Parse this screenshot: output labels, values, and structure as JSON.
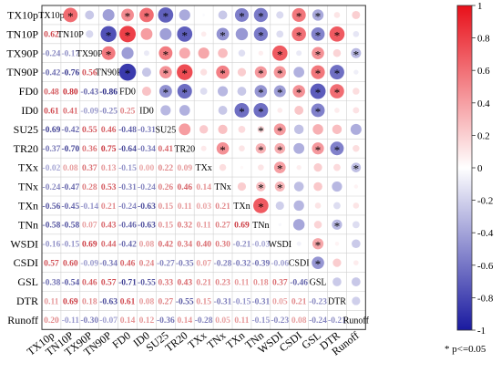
{
  "chart_data": {
    "type": "heatmap",
    "title": "",
    "variables": [
      "TX10p",
      "TN10P",
      "TX90P",
      "TN90P",
      "FD0",
      "ID0",
      "SU25",
      "TR20",
      "TXx",
      "TNx",
      "TXn",
      "TNn",
      "WSDI",
      "CSDI",
      "GSL",
      "DTR",
      "Runoff"
    ],
    "colorbar": {
      "min": -1,
      "max": 1,
      "ticks": [
        "1",
        "0.8",
        "0.6",
        "0.4",
        "0.2",
        "0",
        "-0.2",
        "-0.4",
        "-0.6",
        "-0.8",
        "-1"
      ],
      "high_color": "#e8101a",
      "mid_color": "#ffffff",
      "low_color": "#1a1aa0"
    },
    "significance_note": "* p<=0.05",
    "lower_triangle_values": [
      [],
      [
        0.62
      ],
      [
        -0.24,
        -0.17
      ],
      [
        -0.42,
        -0.76,
        0.56
      ],
      [
        0.48,
        0.8,
        -0.43,
        -0.86
      ],
      [
        0.61,
        0.41,
        -0.09,
        -0.25,
        0.25
      ],
      [
        -0.69,
        -0.42,
        0.55,
        0.46,
        -0.48,
        -0.31
      ],
      [
        -0.37,
        -0.7,
        0.36,
        0.75,
        -0.64,
        -0.34,
        0.41
      ],
      [
        -0.02,
        0.08,
        0.37,
        0.13,
        -0.15,
        -0.0,
        0.22,
        0.09
      ],
      [
        -0.24,
        -0.47,
        0.28,
        0.53,
        -0.31,
        -0.24,
        0.26,
        0.46,
        0.14
      ],
      [
        -0.56,
        -0.45,
        -0.14,
        0.21,
        -0.24,
        -0.63,
        0.15,
        0.11,
        0.03,
        0.21
      ],
      [
        -0.58,
        -0.58,
        0.07,
        0.43,
        -0.46,
        -0.63,
        0.15,
        0.32,
        0.11,
        0.27,
        0.69
      ],
      [
        -0.16,
        -0.15,
        0.69,
        0.44,
        -0.42,
        0.08,
        0.42,
        0.34,
        0.4,
        0.3,
        -0.21,
        -0.03
      ],
      [
        0.57,
        0.6,
        -0.09,
        -0.34,
        0.46,
        0.24,
        -0.27,
        -0.35,
        0.07,
        -0.28,
        -0.32,
        -0.39,
        -0.06
      ],
      [
        -0.38,
        -0.54,
        0.46,
        0.57,
        -0.71,
        -0.55,
        0.33,
        0.43,
        0.21,
        0.23,
        0.11,
        0.18,
        0.37,
        -0.46
      ],
      [
        0.11,
        0.69,
        0.18,
        -0.63,
        0.61,
        0.08,
        0.27,
        -0.55,
        0.15,
        -0.31,
        -0.15,
        -0.31,
        0.05,
        0.21,
        -0.23
      ],
      [
        0.2,
        -0.11,
        -0.3,
        -0.07,
        0.14,
        0.12,
        -0.36,
        0.14,
        -0.28,
        0.05,
        0.11,
        -0.15,
        -0.23,
        0.08,
        -0.24,
        -0.21
      ]
    ],
    "upper_triangle_values": [
      [
        0.62,
        -0.24,
        -0.42,
        0.48,
        0.61,
        -0.69,
        -0.37,
        -0.02,
        -0.24,
        -0.56,
        -0.58,
        -0.16,
        0.57,
        -0.38,
        0.11,
        0.2
      ],
      [
        -0.17,
        -0.76,
        0.8,
        0.41,
        -0.42,
        -0.7,
        0.08,
        -0.47,
        -0.45,
        -0.58,
        -0.15,
        0.6,
        -0.54,
        0.69,
        -0.11
      ],
      [
        0.56,
        -0.43,
        -0.09,
        0.55,
        0.36,
        0.37,
        0.28,
        -0.14,
        0.07,
        0.69,
        -0.09,
        0.46,
        0.18,
        -0.3
      ],
      [
        -0.86,
        -0.25,
        0.46,
        0.75,
        0.13,
        0.53,
        0.21,
        0.43,
        0.44,
        -0.34,
        0.57,
        -0.63,
        -0.07
      ],
      [
        0.25,
        -0.48,
        -0.64,
        -0.15,
        -0.31,
        -0.24,
        -0.46,
        -0.42,
        0.46,
        -0.71,
        0.61,
        0.14
      ],
      [
        -0.31,
        -0.34,
        -0.0,
        -0.24,
        -0.63,
        -0.63,
        0.08,
        0.24,
        -0.55,
        0.08,
        0.12
      ],
      [
        0.41,
        0.22,
        0.26,
        0.15,
        0.15,
        0.42,
        -0.27,
        0.33,
        0.27,
        -0.36
      ],
      [
        0.09,
        0.46,
        0.11,
        0.32,
        0.34,
        -0.35,
        0.43,
        -0.55,
        0.14
      ],
      [
        0.14,
        0.03,
        0.11,
        0.4,
        0.07,
        0.21,
        0.15,
        -0.28
      ],
      [
        0.21,
        0.27,
        0.3,
        -0.28,
        0.23,
        -0.31,
        0.05
      ],
      [
        0.69,
        -0.21,
        -0.32,
        0.11,
        -0.15,
        0.11
      ],
      [
        -0.03,
        -0.39,
        0.18,
        -0.31,
        -0.15
      ],
      [
        -0.06,
        0.37,
        0.05,
        -0.23
      ],
      [
        -0.46,
        0.21,
        0.08
      ],
      [
        -0.23,
        -0.24
      ],
      [
        -0.21
      ],
      []
    ],
    "significant_upper": [
      [
        1,
        0,
        0,
        1,
        1,
        1,
        0,
        0,
        0,
        1,
        1,
        0,
        1,
        1,
        0,
        0
      ],
      [
        0,
        1,
        1,
        0,
        0,
        1,
        0,
        1,
        0,
        1,
        0,
        1,
        1,
        1,
        0
      ],
      [
        1,
        0,
        0,
        1,
        0,
        0,
        0,
        0,
        0,
        1,
        0,
        1,
        0,
        1
      ],
      [
        1,
        0,
        1,
        1,
        0,
        1,
        0,
        1,
        1,
        0,
        1,
        1,
        0
      ],
      [
        0,
        1,
        1,
        0,
        0,
        0,
        1,
        1,
        1,
        1,
        1,
        0
      ],
      [
        0,
        0,
        0,
        0,
        1,
        1,
        0,
        0,
        1,
        0,
        0
      ],
      [
        0,
        0,
        0,
        0,
        1,
        1,
        0,
        0,
        0,
        0
      ],
      [
        0,
        1,
        0,
        1,
        1,
        0,
        1,
        1,
        0
      ],
      [
        0,
        0,
        0,
        1,
        0,
        0,
        0,
        1
      ],
      [
        0,
        1,
        1,
        0,
        0,
        0,
        0
      ],
      [
        1,
        0,
        0,
        0,
        0,
        0
      ],
      [
        0,
        0,
        0,
        1,
        0
      ],
      [
        0,
        1,
        0,
        0
      ],
      [
        1,
        0,
        0
      ],
      [
        0,
        0
      ],
      [
        0
      ],
      []
    ]
  }
}
